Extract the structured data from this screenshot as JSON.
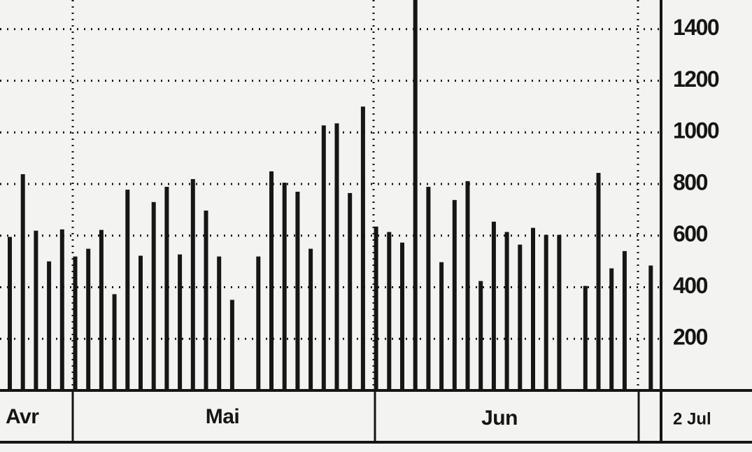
{
  "chart_data": {
    "type": "bar",
    "values": [
      595,
      838,
      619,
      500,
      624,
      519,
      549,
      622,
      373,
      778,
      522,
      730,
      789,
      527,
      819,
      697,
      519,
      351,
      null,
      519,
      849,
      805,
      770,
      549,
      1027,
      1035,
      765,
      1100,
      635,
      614,
      573,
      1513,
      789,
      497,
      738,
      811,
      424,
      654,
      614,
      565,
      630,
      603,
      603,
      null,
      405,
      843,
      473,
      540,
      null,
      484
    ],
    "color": "#161616",
    "ylim": [
      0,
      1513
    ],
    "yticks": [
      200,
      400,
      600,
      800,
      1000,
      1200,
      1400
    ],
    "grid": true,
    "months": [
      "Avr",
      "Mai",
      "Jun"
    ],
    "end_label": "2 Jul"
  }
}
